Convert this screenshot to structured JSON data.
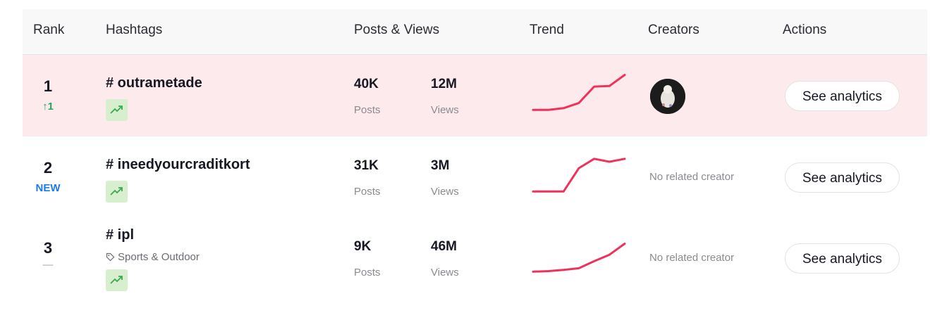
{
  "header": {
    "rank": "Rank",
    "hashtags": "Hashtags",
    "posts_views": "Posts & Views",
    "trend": "Trend",
    "creators": "Creators",
    "actions": "Actions"
  },
  "colors": {
    "highlight_row": "#fdeaec",
    "trend_line": "#f0325a",
    "badge_bg": "#d7efcf",
    "up": "#26a65b",
    "new": "#1b7bf0"
  },
  "rows": [
    {
      "rank": "1",
      "rank_change": "↑1",
      "hashtag": "# outrametade",
      "posts": "40K",
      "posts_label": "Posts",
      "views": "12M",
      "views_label": "Views",
      "trend": [
        2,
        2,
        5,
        14,
        42,
        43,
        62
      ],
      "creator": "avatar",
      "action": "See analytics"
    },
    {
      "rank": "2",
      "rank_change": "NEW",
      "hashtag": "# ineedyourcraditkort",
      "posts": "31K",
      "posts_label": "Posts",
      "views": "3M",
      "views_label": "Views",
      "trend": [
        2,
        2,
        2,
        42,
        58,
        53,
        58
      ],
      "creator": "No related creator",
      "action": "See analytics"
    },
    {
      "rank": "3",
      "rank_change": "—",
      "hashtag": "# ipl",
      "category": "Sports & Outdoor",
      "posts": "9K",
      "posts_label": "Posts",
      "views": "46M",
      "views_label": "Views",
      "trend": [
        2,
        3,
        5,
        8,
        20,
        31,
        50
      ],
      "creator": "No related creator",
      "action": "See analytics"
    }
  ]
}
